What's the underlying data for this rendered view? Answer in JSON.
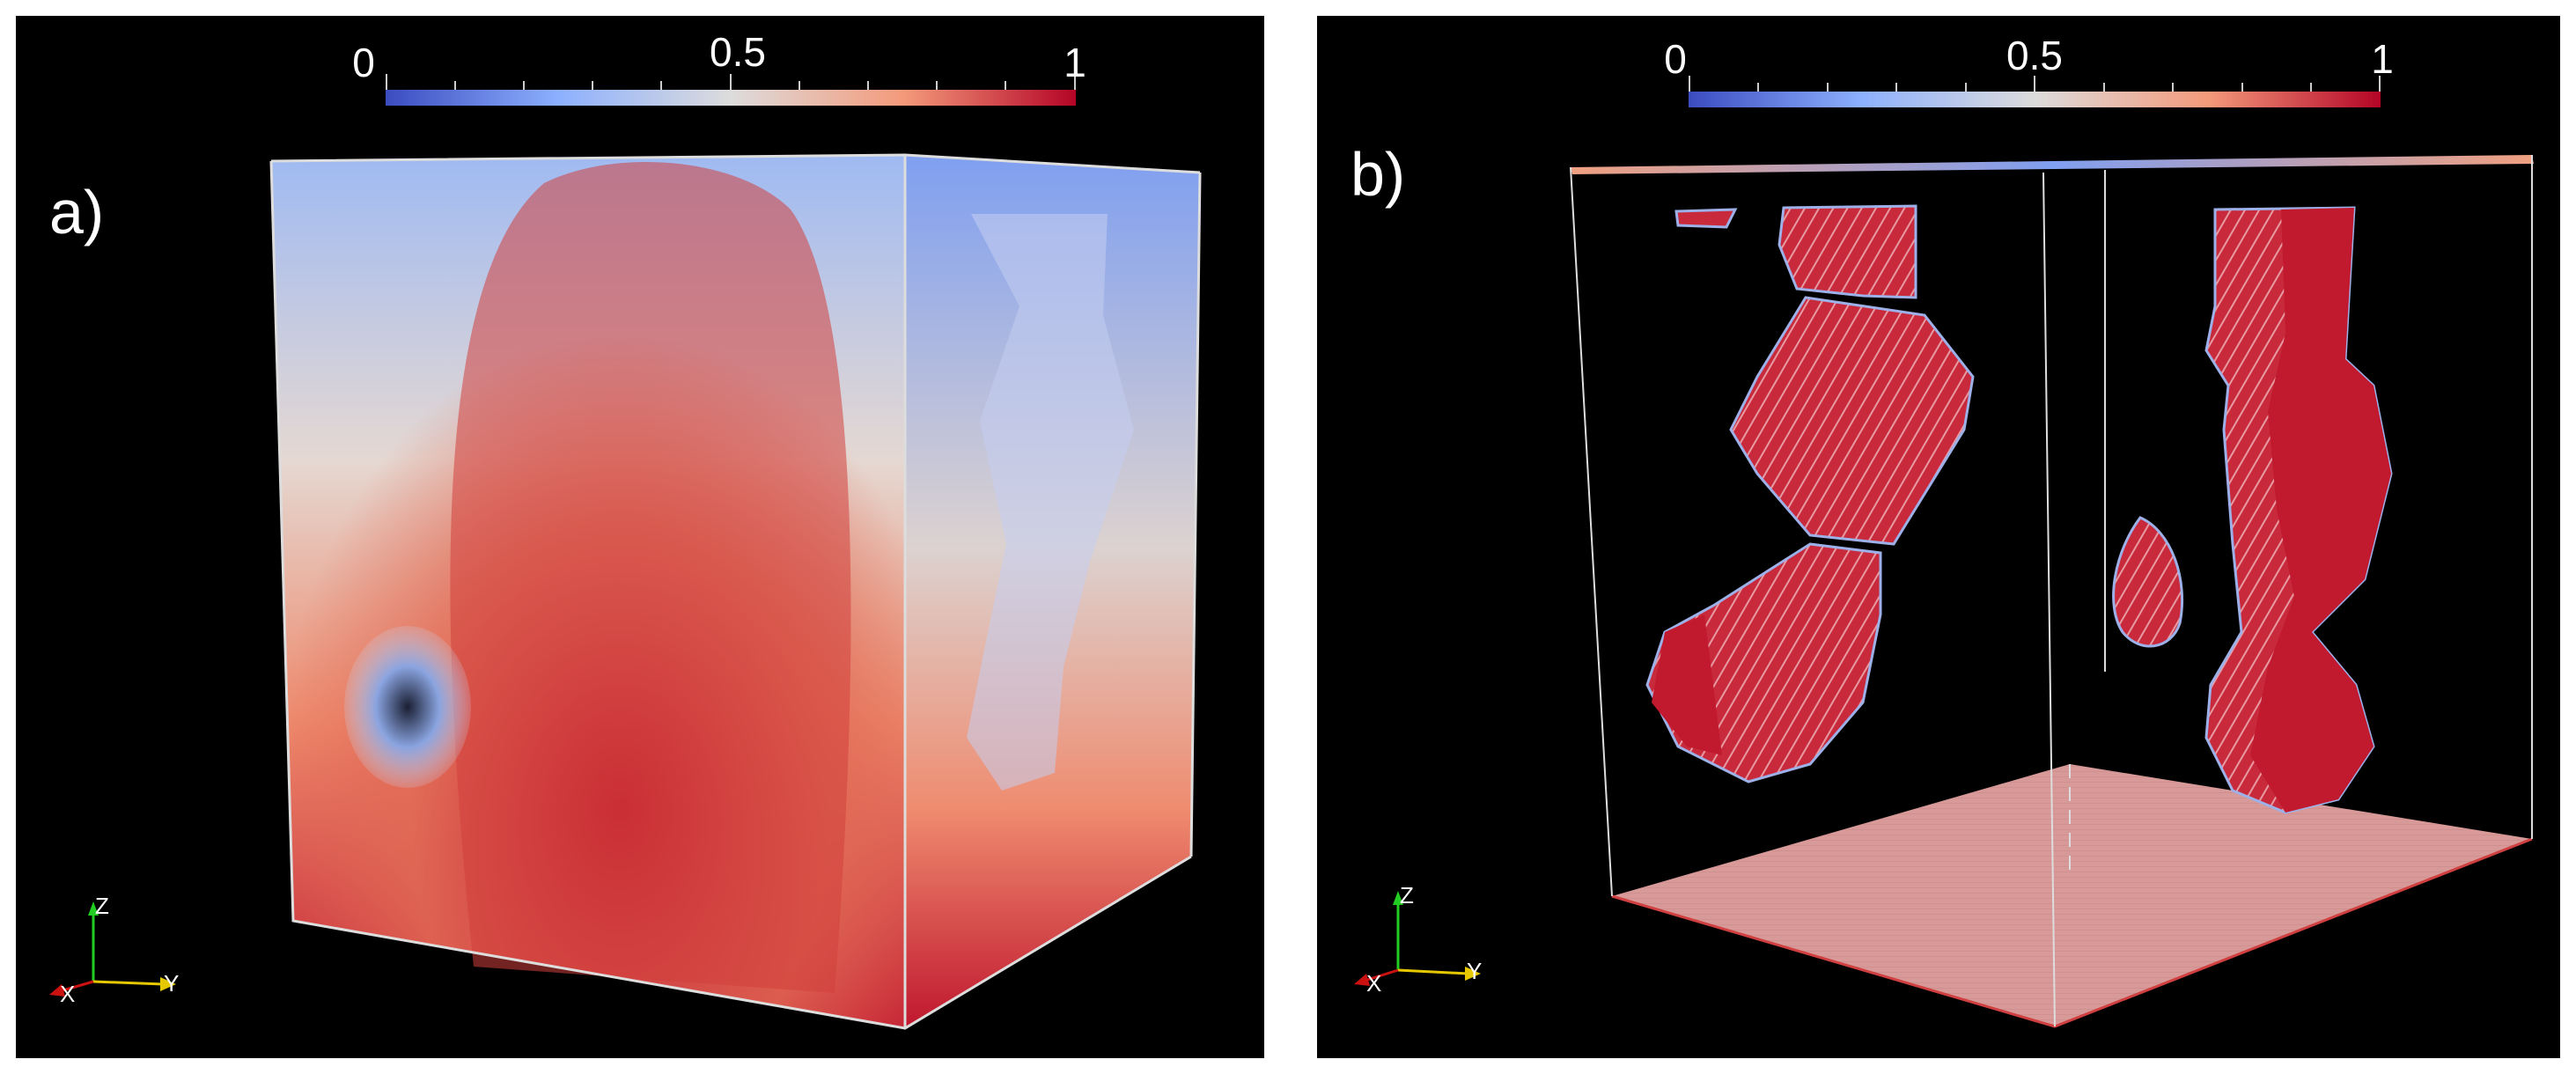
{
  "panels": [
    {
      "label": "a)",
      "colorbar": {
        "ticks": [
          "0",
          "0.5",
          "1"
        ],
        "colors": [
          "#3b4cc0",
          "#dddddd",
          "#b40426"
        ]
      },
      "axes": {
        "z": "Z",
        "x": "X",
        "y": "Y"
      }
    },
    {
      "label": "b)",
      "colorbar": {
        "ticks": [
          "0",
          "0.5",
          "1"
        ],
        "colors": [
          "#3b4cc0",
          "#dddddd",
          "#b40426"
        ]
      },
      "axes": {
        "z": "Z",
        "x": "X",
        "y": "Y"
      }
    }
  ]
}
